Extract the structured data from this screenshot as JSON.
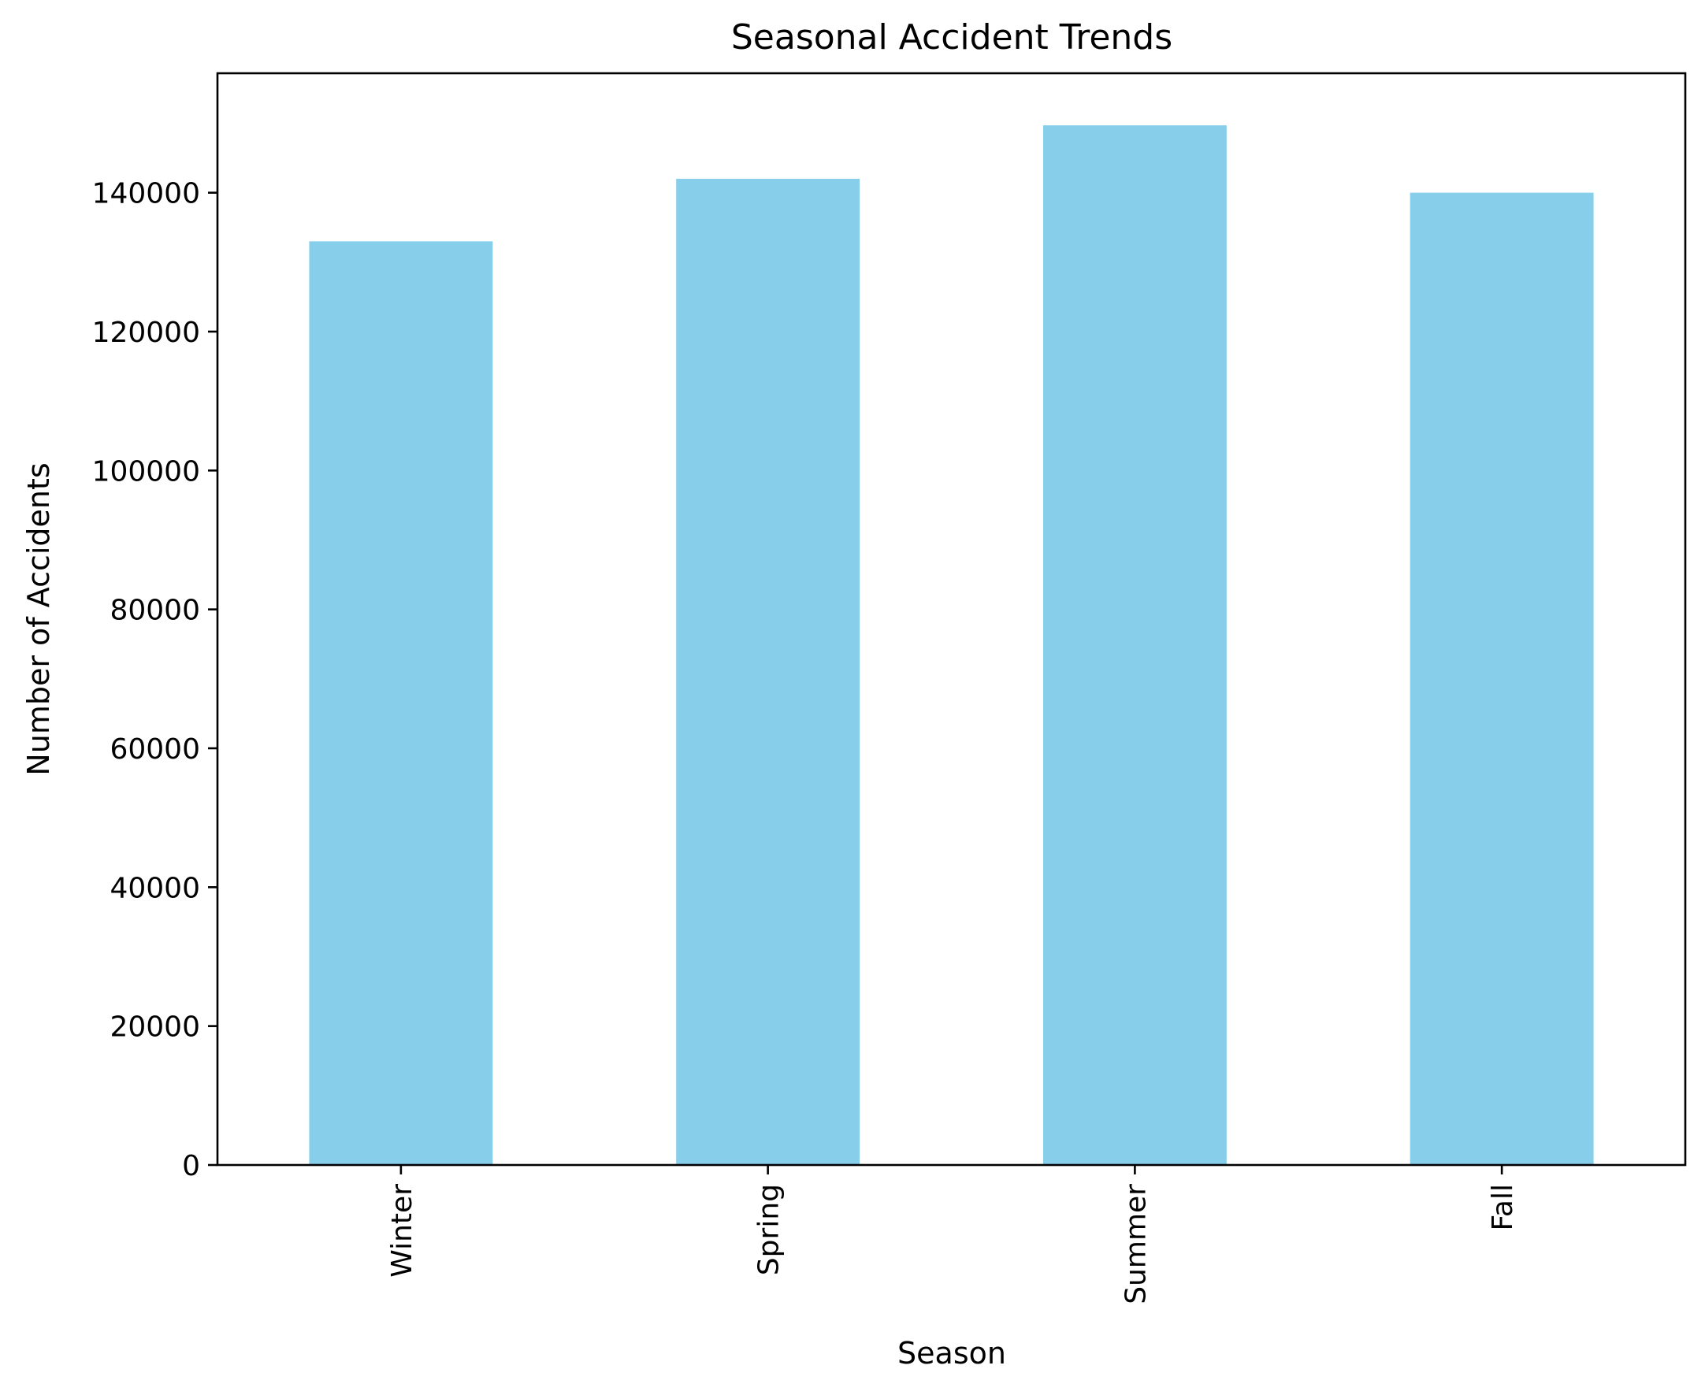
{
  "chart_data": {
    "type": "bar",
    "title": "Seasonal Accident Trends",
    "xlabel": "Season",
    "ylabel": "Number of Accidents",
    "categories": [
      "Winter",
      "Spring",
      "Summer",
      "Fall"
    ],
    "values": [
      133000,
      142000,
      149700,
      140000
    ],
    "ylim": [
      0,
      157200
    ],
    "yticks": [
      0,
      20000,
      40000,
      60000,
      80000,
      100000,
      120000,
      140000
    ],
    "ytick_labels": [
      "0",
      "20000",
      "40000",
      "60000",
      "80000",
      "100000",
      "120000",
      "140000"
    ],
    "bar_color": "#87CEEB",
    "grid": false,
    "legend": "none"
  }
}
